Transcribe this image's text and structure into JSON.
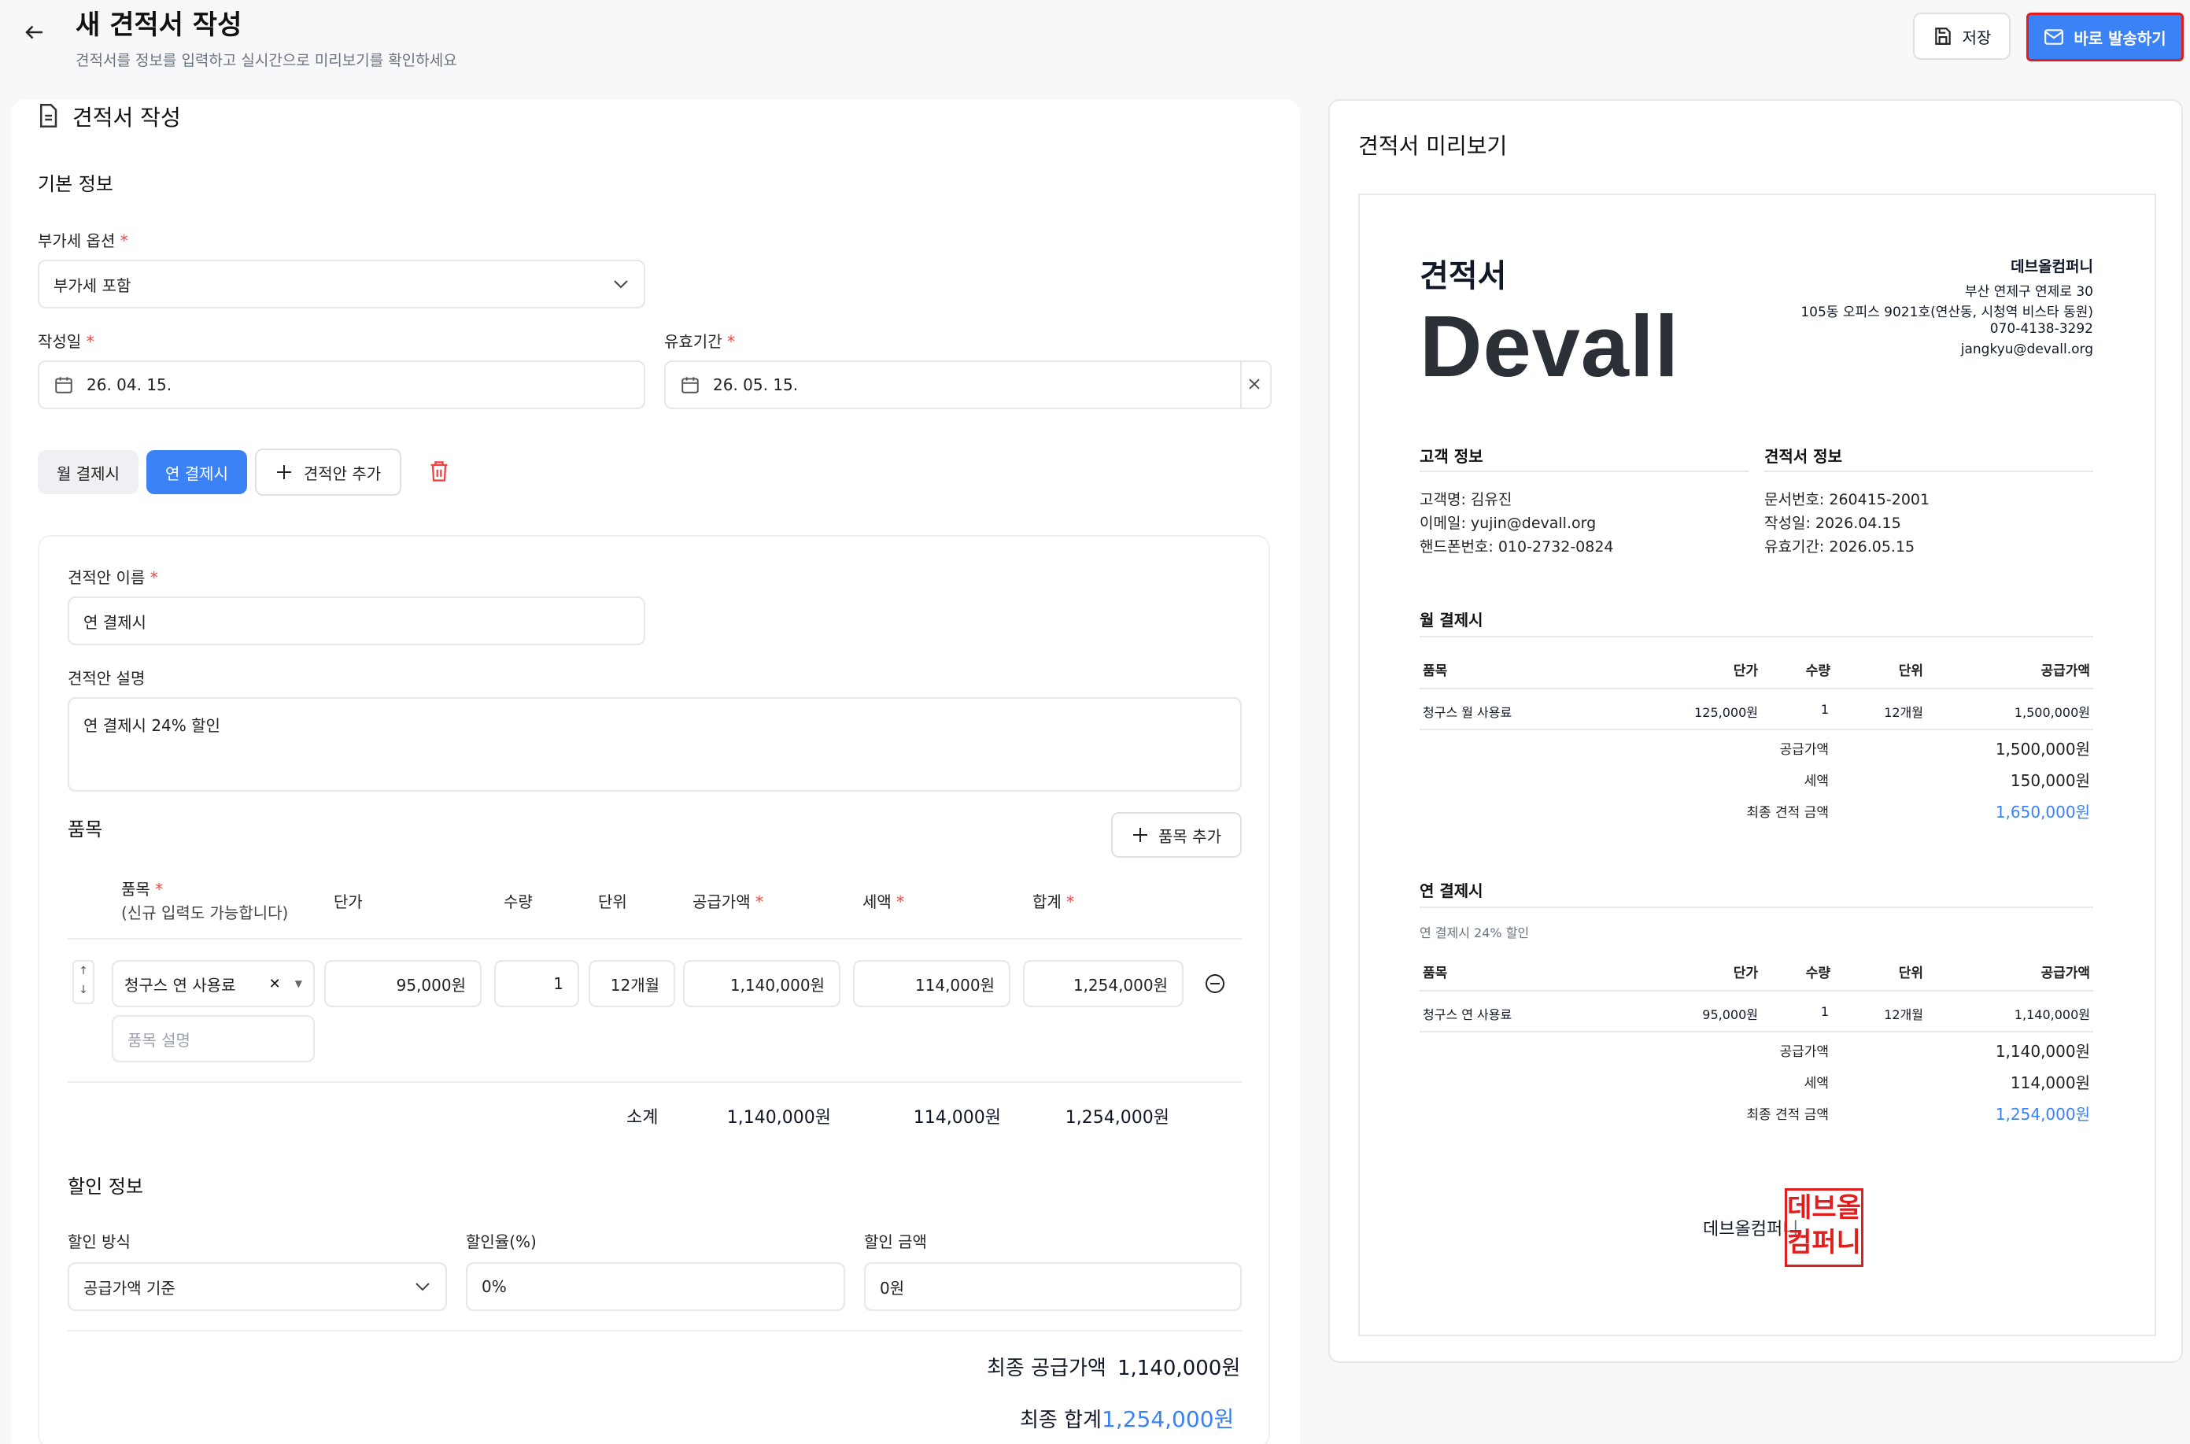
{
  "header": {
    "title": "새 견적서 작성",
    "subtitle": "견적서를 정보를 입력하고 실시간으로 미리보기를 확인하세요",
    "save_label": "저장",
    "send_label": "바로 발송하기"
  },
  "form": {
    "section_title": "견적서 작성",
    "basic_title": "기본 정보",
    "vat_label": "부가세 옵션",
    "vat_value": "부가세 포함",
    "date_label": "작성일",
    "date_value": "26. 04. 15.",
    "valid_label": "유효기간",
    "valid_value": "26. 05. 15.",
    "tabs": [
      {
        "label": "월 결제시"
      },
      {
        "label": "연 결제시"
      }
    ],
    "add_plan_label": "견적안 추가",
    "plan": {
      "name_label": "견적안 이름",
      "name_value": "연 결제시",
      "desc_label": "견적안 설명",
      "desc_value": "연 결제시 24% 할인",
      "items_title": "품목",
      "add_item_label": "품목 추가",
      "columns": {
        "item": "품목",
        "item_hint": "(신규 입력도 가능합니다)",
        "price": "단가",
        "qty": "수량",
        "unit": "단위",
        "supply": "공급가액",
        "tax": "세액",
        "total": "합계"
      },
      "row": {
        "item": "청구스 연 사용료",
        "price": "95,000원",
        "qty": "1",
        "unit": "12개월",
        "supply": "1,140,000원",
        "tax": "114,000원",
        "total": "1,254,000원",
        "desc_placeholder": "품목 설명"
      },
      "subtotal": {
        "label": "소계",
        "supply": "1,140,000원",
        "tax": "114,000원",
        "total": "1,254,000원"
      },
      "discount": {
        "title": "할인 정보",
        "method_label": "할인 방식",
        "method_value": "공급가액 기준",
        "rate_label": "할인율(%)",
        "rate_value": "0%",
        "amount_label": "할인 금액",
        "amount_value": "0원"
      },
      "final": {
        "supply_label": "최종 공급가액",
        "supply_value": "1,140,000원",
        "total_label": "최종 합계",
        "total_value": "1,254,000원"
      }
    }
  },
  "preview": {
    "title": "견적서 미리보기",
    "doc_title": "견적서",
    "logo_text": "Devall",
    "company": {
      "name": "데브올컴퍼니",
      "addr1": "부산 연제구 연제로 30",
      "addr2": "105동 오피스 9021호(연산동, 시청역 비스타 동원)",
      "phone": "070-4138-3292",
      "email": "jangkyu@devall.org"
    },
    "client_title": "고객 정보",
    "client_lines": [
      "고객명: 김유진",
      "이메일: yujin@devall.org",
      "핸드폰번호: 010-2732-0824"
    ],
    "quote_title": "견적서 정보",
    "quote_lines": [
      "문서번호: 260415-2001",
      "작성일: 2026.04.15",
      "유효기간: 2026.05.15"
    ],
    "table_cols": {
      "item": "품목",
      "price": "단가",
      "qty": "수량",
      "unit": "단위",
      "supply": "공급가액"
    },
    "sum_labels": {
      "supply": "공급가액",
      "tax": "세액",
      "final": "최종 견적 금액"
    },
    "plans": [
      {
        "name": "월 결제시",
        "desc": "",
        "item": "청구스 월 사용료",
        "price": "125,000원",
        "qty": "1",
        "unit": "12개월",
        "supply": "1,500,000원",
        "sum_supply": "1,500,000원",
        "sum_tax": "150,000원",
        "sum_final": "1,650,000원"
      },
      {
        "name": "연 결제시",
        "desc": "연 결제시 24% 할인",
        "item": "청구스 연 사용료",
        "price": "95,000원",
        "qty": "1",
        "unit": "12개월",
        "supply": "1,140,000원",
        "sum_supply": "1,140,000원",
        "sum_tax": "114,000원",
        "sum_final": "1,254,000원"
      }
    ],
    "signature_name": "데브올컴퍼니",
    "stamp_lines": [
      "데브올",
      "컴퍼니"
    ]
  },
  "colors": {
    "accent": "#3b82f6",
    "stamp": "#e11d1d",
    "danger": "#ef4444"
  }
}
